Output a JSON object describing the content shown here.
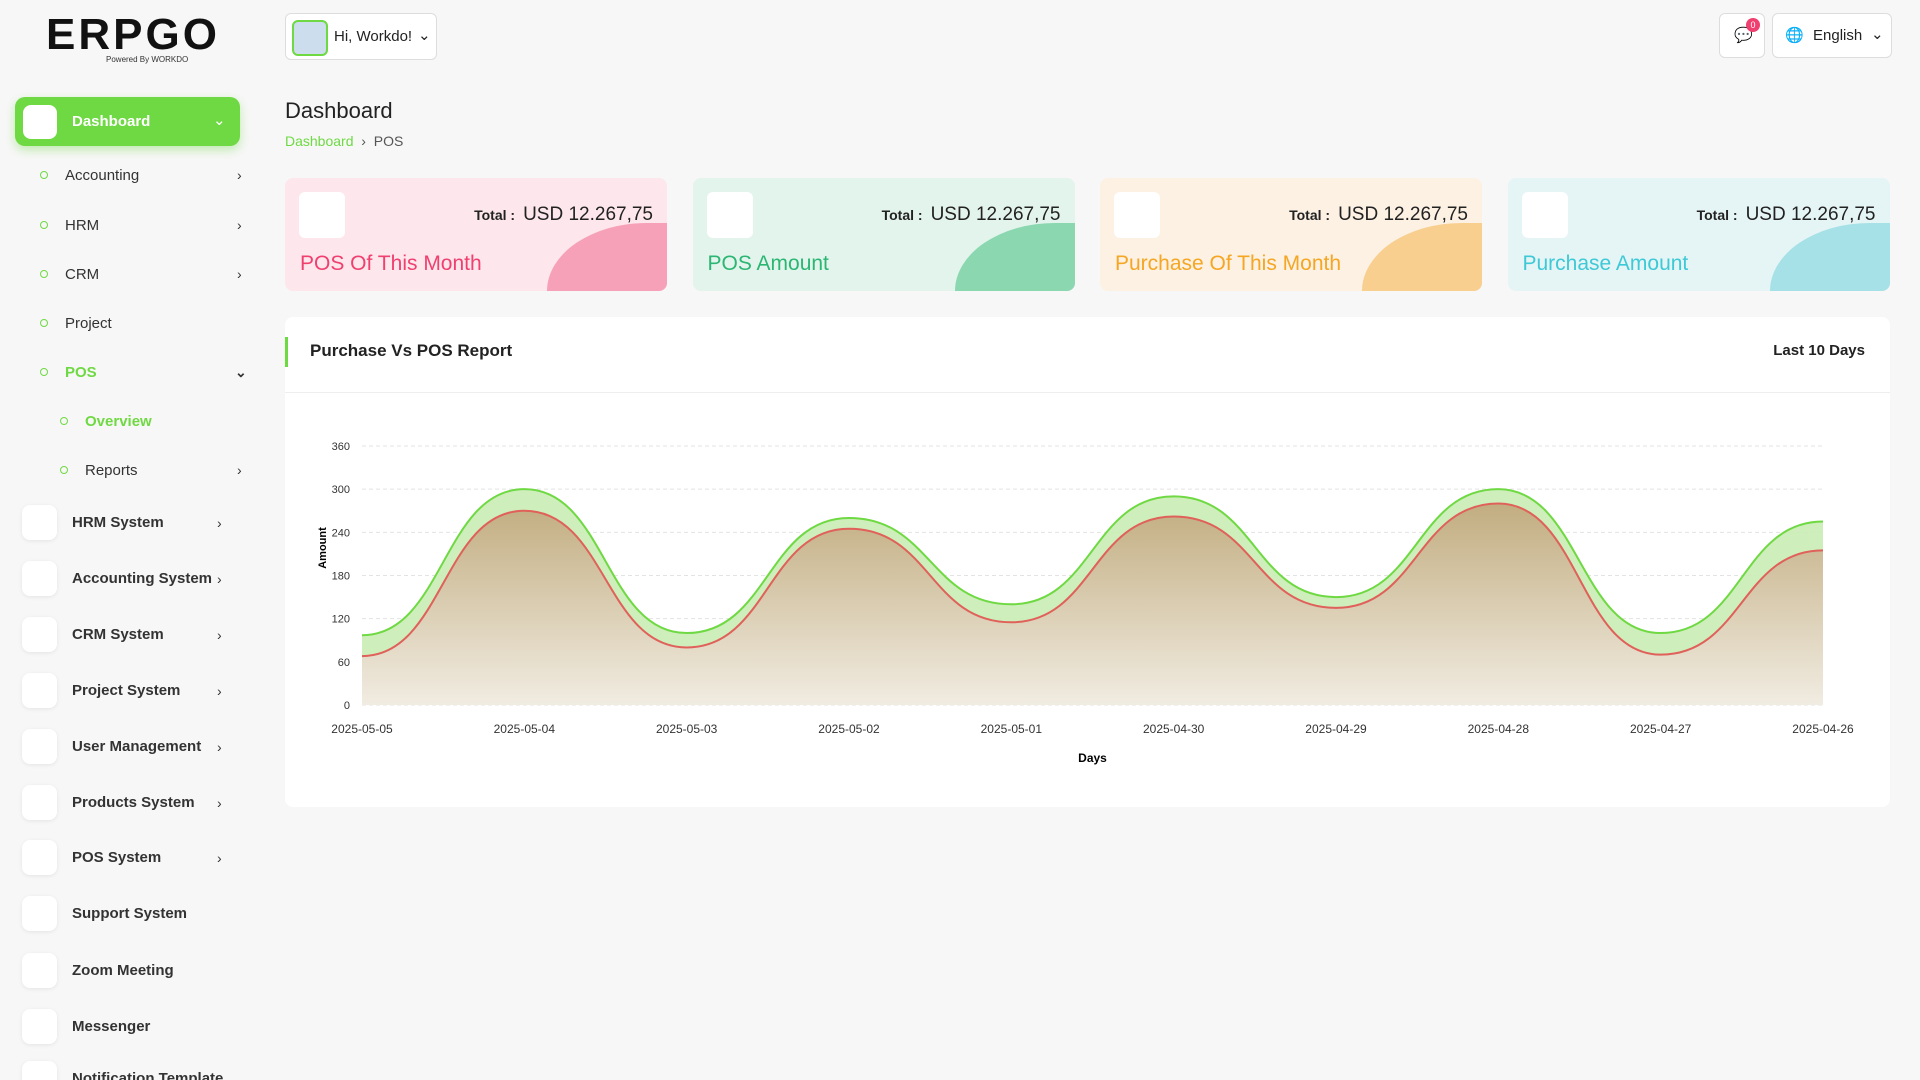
{
  "sidebar": {
    "logo": "ERPGO",
    "logo_tagline": "Powered By WORKDO",
    "menu": [
      {
        "label": "Dashboard",
        "children": [
          {
            "label": "Accounting"
          },
          {
            "label": "HRM"
          },
          {
            "label": "CRM"
          },
          {
            "label": "Project"
          },
          {
            "label": "POS",
            "children": [
              {
                "label": "Overview"
              },
              {
                "label": "Reports"
              }
            ]
          }
        ]
      },
      {
        "label": "HRM System"
      },
      {
        "label": "Accounting System"
      },
      {
        "label": "CRM System"
      },
      {
        "label": "Project System"
      },
      {
        "label": "User Management"
      },
      {
        "label": "Products System"
      },
      {
        "label": "POS System"
      },
      {
        "label": "Support System"
      },
      {
        "label": "Zoom Meeting"
      },
      {
        "label": "Messenger"
      },
      {
        "label": "Notification Template"
      }
    ]
  },
  "header": {
    "greeting": "Hi, Workdo!",
    "notification_count": "0",
    "language": "English"
  },
  "page": {
    "title": "Dashboard",
    "breadcrumb": [
      "Dashboard",
      "POS"
    ],
    "cards": [
      {
        "total_label": "Total :",
        "total": "USD 12.267,75",
        "title": "POS Of This Month"
      },
      {
        "total_label": "Total :",
        "total": "USD 12.267,75",
        "title": "POS Amount"
      },
      {
        "total_label": "Total :",
        "total": "USD 12.267,75",
        "title": "Purchase Of This Month"
      },
      {
        "total_label": "Total :",
        "total": "USD 12.267,75",
        "title": "Purchase Amount"
      }
    ],
    "chart": {
      "type": "area",
      "title": "Purchase Vs POS Report",
      "filter": "Last 10 Days",
      "x_label": "Days",
      "y_label": "Amount",
      "x": [
        "2025-05-05",
        "2025-05-04",
        "2025-05-03",
        "2025-05-02",
        "2025-05-01",
        "2025-04-30",
        "2025-04-29",
        "2025-04-28",
        "2025-04-27",
        "2025-04-26"
      ],
      "series": [
        {
          "color": "#6fd943",
          "values": [
            97,
            300,
            100,
            260,
            140,
            290,
            150,
            300,
            100,
            255
          ]
        },
        {
          "color": "#e0605a",
          "values": [
            68,
            270,
            80,
            245,
            115,
            262,
            135,
            280,
            70,
            215
          ]
        }
      ],
      "ylim": [
        0,
        360
      ],
      "yticks": [
        0,
        60,
        120,
        180,
        240,
        300,
        360
      ],
      "grid": true
    }
  }
}
